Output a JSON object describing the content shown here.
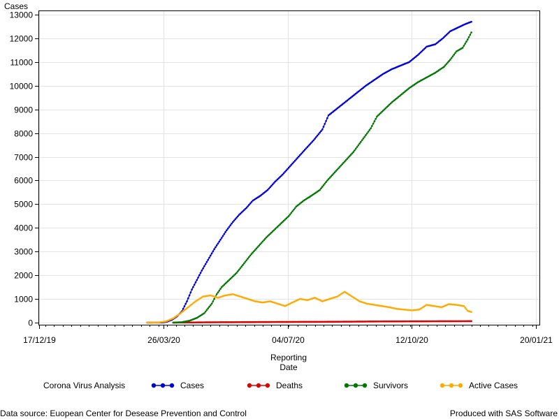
{
  "chart_data": {
    "type": "line",
    "ylabel": "Cases",
    "xlabel_lines": [
      "Reporting",
      "Date"
    ],
    "ylim": [
      0,
      13000
    ],
    "y_ticks": [
      0,
      1000,
      2000,
      3000,
      4000,
      5000,
      6000,
      7000,
      8000,
      9000,
      10000,
      11000,
      12000,
      13000
    ],
    "x_range": [
      "2019-12-08",
      "2021-01-26"
    ],
    "x_ticks": [
      {
        "date": "2019-12-17",
        "label": "17/12/19"
      },
      {
        "date": "2020-03-26",
        "label": "26/03/20"
      },
      {
        "date": "2020-07-04",
        "label": "04/07/20"
      },
      {
        "date": "2020-10-12",
        "label": "12/10/20"
      },
      {
        "date": "2021-01-20",
        "label": "20/01/21"
      }
    ],
    "grid": true,
    "legend_position": "bottom",
    "series": [
      {
        "name": "Cases",
        "color": "#0000dd",
        "points": [
          [
            "2020-03-13",
            0
          ],
          [
            "2020-03-25",
            5
          ],
          [
            "2020-03-29",
            40
          ],
          [
            "2020-04-02",
            120
          ],
          [
            "2020-04-06",
            260
          ],
          [
            "2020-04-10",
            480
          ],
          [
            "2020-04-14",
            900
          ],
          [
            "2020-04-18",
            1400
          ],
          [
            "2020-04-22",
            1800
          ],
          [
            "2020-04-26",
            2200
          ],
          [
            "2020-05-01",
            2650
          ],
          [
            "2020-05-06",
            3100
          ],
          [
            "2020-05-11",
            3500
          ],
          [
            "2020-05-16",
            3900
          ],
          [
            "2020-05-21",
            4250
          ],
          [
            "2020-05-26",
            4550
          ],
          [
            "2020-06-01",
            4850
          ],
          [
            "2020-06-06",
            5150
          ],
          [
            "2020-06-12",
            5350
          ],
          [
            "2020-06-18",
            5600
          ],
          [
            "2020-06-24",
            5950
          ],
          [
            "2020-06-30",
            6250
          ],
          [
            "2020-07-06",
            6600
          ],
          [
            "2020-07-12",
            6950
          ],
          [
            "2020-07-18",
            7300
          ],
          [
            "2020-07-25",
            7700
          ],
          [
            "2020-08-01",
            8150
          ],
          [
            "2020-08-06",
            8750
          ],
          [
            "2020-08-12",
            9000
          ],
          [
            "2020-08-18",
            9250
          ],
          [
            "2020-08-24",
            9500
          ],
          [
            "2020-08-30",
            9750
          ],
          [
            "2020-09-05",
            10000
          ],
          [
            "2020-09-12",
            10250
          ],
          [
            "2020-09-19",
            10500
          ],
          [
            "2020-09-26",
            10700
          ],
          [
            "2020-10-03",
            10850
          ],
          [
            "2020-10-10",
            11000
          ],
          [
            "2020-10-17",
            11300
          ],
          [
            "2020-10-24",
            11650
          ],
          [
            "2020-10-31",
            11750
          ],
          [
            "2020-11-06",
            12000
          ],
          [
            "2020-11-12",
            12300
          ],
          [
            "2020-11-18",
            12450
          ],
          [
            "2020-11-24",
            12600
          ],
          [
            "2020-11-29",
            12700
          ]
        ]
      },
      {
        "name": "Deaths",
        "color": "#dd0000",
        "points": [
          [
            "2020-04-03",
            0
          ],
          [
            "2020-04-12",
            5
          ],
          [
            "2020-05-01",
            15
          ],
          [
            "2020-06-01",
            22
          ],
          [
            "2020-07-01",
            30
          ],
          [
            "2020-08-01",
            35
          ],
          [
            "2020-08-20",
            40
          ],
          [
            "2020-09-15",
            50
          ],
          [
            "2020-10-15",
            55
          ],
          [
            "2020-11-15",
            60
          ],
          [
            "2020-11-29",
            62
          ]
        ]
      },
      {
        "name": "Survivors",
        "color": "#007700",
        "points": [
          [
            "2020-04-03",
            0
          ],
          [
            "2020-04-10",
            20
          ],
          [
            "2020-04-16",
            80
          ],
          [
            "2020-04-22",
            200
          ],
          [
            "2020-04-28",
            400
          ],
          [
            "2020-05-04",
            800
          ],
          [
            "2020-05-08",
            1200
          ],
          [
            "2020-05-12",
            1500
          ],
          [
            "2020-05-18",
            1800
          ],
          [
            "2020-05-24",
            2100
          ],
          [
            "2020-05-30",
            2500
          ],
          [
            "2020-06-05",
            2900
          ],
          [
            "2020-06-11",
            3250
          ],
          [
            "2020-06-17",
            3600
          ],
          [
            "2020-06-23",
            3900
          ],
          [
            "2020-06-29",
            4200
          ],
          [
            "2020-07-05",
            4500
          ],
          [
            "2020-07-11",
            4900
          ],
          [
            "2020-07-17",
            5150
          ],
          [
            "2020-07-23",
            5350
          ],
          [
            "2020-07-30",
            5600
          ],
          [
            "2020-08-05",
            6000
          ],
          [
            "2020-08-12",
            6400
          ],
          [
            "2020-08-19",
            6800
          ],
          [
            "2020-08-26",
            7200
          ],
          [
            "2020-09-02",
            7700
          ],
          [
            "2020-09-09",
            8200
          ],
          [
            "2020-09-14",
            8700
          ],
          [
            "2020-09-20",
            9000
          ],
          [
            "2020-09-26",
            9300
          ],
          [
            "2020-10-03",
            9600
          ],
          [
            "2020-10-10",
            9900
          ],
          [
            "2020-10-17",
            10150
          ],
          [
            "2020-10-24",
            10350
          ],
          [
            "2020-10-31",
            10550
          ],
          [
            "2020-11-07",
            10800
          ],
          [
            "2020-11-12",
            11100
          ],
          [
            "2020-11-17",
            11450
          ],
          [
            "2020-11-22",
            11600
          ],
          [
            "2020-11-26",
            11950
          ],
          [
            "2020-11-29",
            12250
          ]
        ]
      },
      {
        "name": "Active Cases",
        "color": "#ffaa00",
        "points": [
          [
            "2020-03-13",
            0
          ],
          [
            "2020-03-22",
            5
          ],
          [
            "2020-03-28",
            50
          ],
          [
            "2020-04-03",
            180
          ],
          [
            "2020-04-09",
            400
          ],
          [
            "2020-04-15",
            650
          ],
          [
            "2020-04-21",
            900
          ],
          [
            "2020-04-27",
            1100
          ],
          [
            "2020-05-03",
            1150
          ],
          [
            "2020-05-09",
            1050
          ],
          [
            "2020-05-15",
            1150
          ],
          [
            "2020-05-21",
            1200
          ],
          [
            "2020-05-27",
            1100
          ],
          [
            "2020-06-02",
            1000
          ],
          [
            "2020-06-08",
            900
          ],
          [
            "2020-06-14",
            850
          ],
          [
            "2020-06-20",
            900
          ],
          [
            "2020-06-26",
            800
          ],
          [
            "2020-07-02",
            700
          ],
          [
            "2020-07-08",
            850
          ],
          [
            "2020-07-14",
            1000
          ],
          [
            "2020-07-20",
            950
          ],
          [
            "2020-07-26",
            1050
          ],
          [
            "2020-08-01",
            900
          ],
          [
            "2020-08-07",
            1000
          ],
          [
            "2020-08-13",
            1100
          ],
          [
            "2020-08-19",
            1300
          ],
          [
            "2020-08-25",
            1100
          ],
          [
            "2020-08-31",
            900
          ],
          [
            "2020-09-06",
            800
          ],
          [
            "2020-09-12",
            750
          ],
          [
            "2020-09-18",
            700
          ],
          [
            "2020-09-24",
            650
          ],
          [
            "2020-09-30",
            580
          ],
          [
            "2020-10-06",
            550
          ],
          [
            "2020-10-12",
            520
          ],
          [
            "2020-10-18",
            550
          ],
          [
            "2020-10-24",
            750
          ],
          [
            "2020-10-30",
            700
          ],
          [
            "2020-11-05",
            650
          ],
          [
            "2020-11-11",
            780
          ],
          [
            "2020-11-17",
            750
          ],
          [
            "2020-11-23",
            700
          ],
          [
            "2020-11-26",
            500
          ],
          [
            "2020-11-29",
            450
          ]
        ]
      }
    ]
  },
  "legend": {
    "title": "Corona Virus Analysis",
    "items": [
      {
        "label": "Cases",
        "color": "#0000dd"
      },
      {
        "label": "Deaths",
        "color": "#dd0000"
      },
      {
        "label": "Survivors",
        "color": "#007700"
      },
      {
        "label": "Active Cases",
        "color": "#ffaa00"
      }
    ]
  },
  "footnotes": {
    "left": "Data source: Euopean Center for Desease Prevention and Control",
    "right": "Produced with SAS Software"
  }
}
